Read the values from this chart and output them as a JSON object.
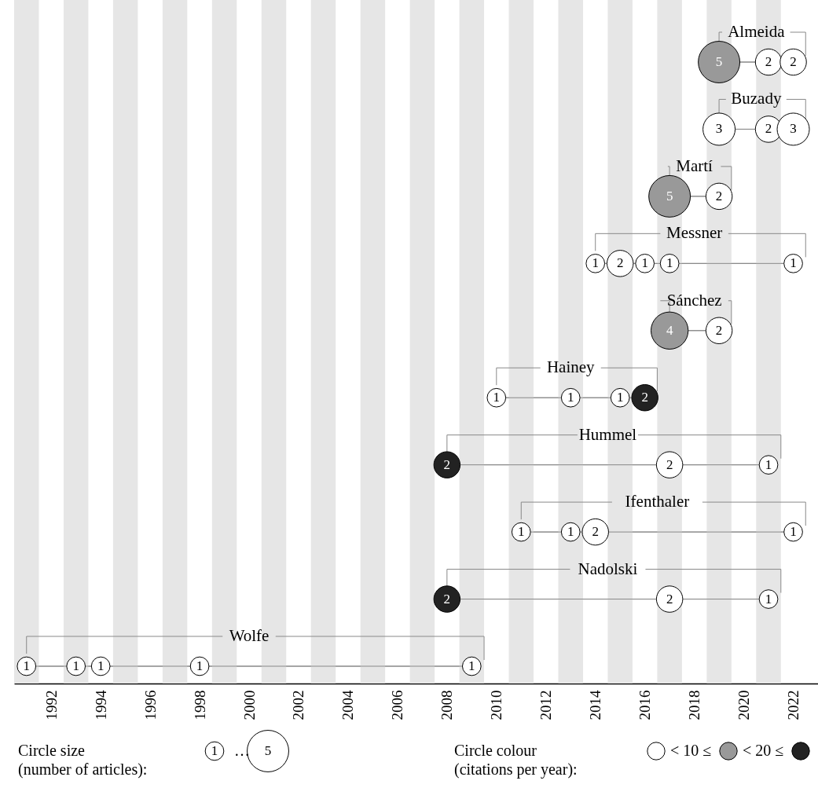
{
  "chart_data": {
    "type": "bubble",
    "orientation": "horizontal",
    "marker": "circle",
    "size_legend": [
      1,
      5
    ],
    "categories": [
      "Almeida",
      "Buzady",
      "Martí",
      "Messner",
      "Sánchez",
      "Hainey",
      "Hummel",
      "Ifenthaler",
      "Nadolski",
      "Wolfe"
    ],
    "xlim": [
      1990.5,
      2023
    ],
    "xticks": [
      1992,
      1994,
      1996,
      1998,
      2000,
      2002,
      2004,
      2006,
      2008,
      2010,
      2012,
      2014,
      2016,
      2018,
      2020,
      2022
    ],
    "series": [
      {
        "values": [
          2019,
          2019,
          2017,
          2014,
          2017,
          2010,
          2008,
          2011,
          2008,
          1991
        ],
        "sizes": [
          5,
          3,
          5,
          1,
          4,
          1,
          2,
          1,
          2,
          1
        ],
        "value_labels": [
          "5",
          "3",
          "5",
          "1",
          "4",
          "1",
          "2",
          "1",
          "2",
          "1"
        ],
        "colors": [
          "#999999",
          "#ffffff",
          "#999999",
          "#ffffff",
          "#999999",
          "#ffffff",
          "#222222",
          "#ffffff",
          "#222222",
          "#ffffff"
        ]
      },
      {
        "values": [
          2021,
          2021,
          2019,
          2015,
          2019,
          2013,
          2017,
          2013,
          2017,
          1993
        ],
        "sizes": [
          2,
          2,
          2,
          2,
          2,
          1,
          2,
          1,
          2,
          1
        ],
        "value_labels": [
          "2",
          "2",
          "2",
          "2",
          "2",
          "1",
          "2",
          "1",
          "2",
          "1"
        ],
        "colors": [
          "#ffffff",
          "#ffffff",
          "#ffffff",
          "#ffffff",
          "#ffffff",
          "#ffffff",
          "#ffffff",
          "#ffffff",
          "#ffffff",
          "#ffffff"
        ]
      },
      {
        "values": [
          2022,
          2022,
          null,
          2016,
          null,
          2015,
          2021,
          2014,
          2021,
          1994
        ],
        "sizes": [
          2,
          3,
          null,
          1,
          null,
          1,
          1,
          2,
          1,
          1
        ],
        "value_labels": [
          "2",
          "3",
          null,
          "1",
          null,
          "1",
          "1",
          "2",
          "1",
          "1"
        ],
        "colors": [
          "#ffffff",
          "#ffffff",
          null,
          "#ffffff",
          null,
          "#ffffff",
          "#ffffff",
          "#ffffff",
          "#ffffff",
          "#ffffff"
        ]
      },
      {
        "values": [
          null,
          null,
          null,
          2017,
          null,
          2016,
          null,
          2022,
          null,
          1998
        ],
        "sizes": [
          null,
          null,
          null,
          1,
          null,
          2,
          null,
          1,
          null,
          1
        ],
        "value_labels": [
          null,
          null,
          null,
          "1",
          null,
          "2",
          null,
          "1",
          null,
          "1"
        ],
        "colors": [
          null,
          null,
          null,
          "#ffffff",
          null,
          "#222222",
          null,
          "#ffffff",
          null,
          "#ffffff"
        ]
      },
      {
        "values": [
          null,
          null,
          null,
          2022,
          null,
          null,
          null,
          null,
          null,
          2009
        ],
        "sizes": [
          null,
          null,
          null,
          1,
          null,
          null,
          null,
          null,
          null,
          1
        ],
        "value_labels": [
          null,
          null,
          null,
          "1",
          null,
          null,
          null,
          null,
          null,
          "1"
        ],
        "colors": [
          null,
          null,
          null,
          "#ffffff",
          null,
          null,
          null,
          null,
          null,
          "#ffffff"
        ]
      }
    ],
    "bands": [
      {
        "axis": "x",
        "from": 1990.5,
        "to": 1991.5,
        "color": "#e6e6e6"
      },
      {
        "axis": "x",
        "from": 1992.5,
        "to": 1993.5,
        "color": "#e6e6e6"
      },
      {
        "axis": "x",
        "from": 1994.5,
        "to": 1995.5,
        "color": "#e6e6e6"
      },
      {
        "axis": "x",
        "from": 1996.5,
        "to": 1997.5,
        "color": "#e6e6e6"
      },
      {
        "axis": "x",
        "from": 1998.5,
        "to": 1999.5,
        "color": "#e6e6e6"
      },
      {
        "axis": "x",
        "from": 2000.5,
        "to": 2001.5,
        "color": "#e6e6e6"
      },
      {
        "axis": "x",
        "from": 2002.5,
        "to": 2003.5,
        "color": "#e6e6e6"
      },
      {
        "axis": "x",
        "from": 2004.5,
        "to": 2005.5,
        "color": "#e6e6e6"
      },
      {
        "axis": "x",
        "from": 2006.5,
        "to": 2007.5,
        "color": "#e6e6e6"
      },
      {
        "axis": "x",
        "from": 2008.5,
        "to": 2009.5,
        "color": "#e6e6e6"
      },
      {
        "axis": "x",
        "from": 2010.5,
        "to": 2011.5,
        "color": "#e6e6e6"
      },
      {
        "axis": "x",
        "from": 2012.5,
        "to": 2013.5,
        "color": "#e6e6e6"
      },
      {
        "axis": "x",
        "from": 2014.5,
        "to": 2015.5,
        "color": "#e6e6e6"
      },
      {
        "axis": "x",
        "from": 2016.5,
        "to": 2017.5,
        "color": "#e6e6e6"
      },
      {
        "axis": "x",
        "from": 2018.5,
        "to": 2019.5,
        "color": "#e6e6e6"
      },
      {
        "axis": "x",
        "from": 2020.5,
        "to": 2021.5,
        "color": "#e6e6e6"
      }
    ],
    "annotations": [
      "Circle size\n(number of articles):",
      "…",
      "Circle colour\n(citations per year):",
      "< 10 ≤",
      "< 20 ≤"
    ]
  }
}
